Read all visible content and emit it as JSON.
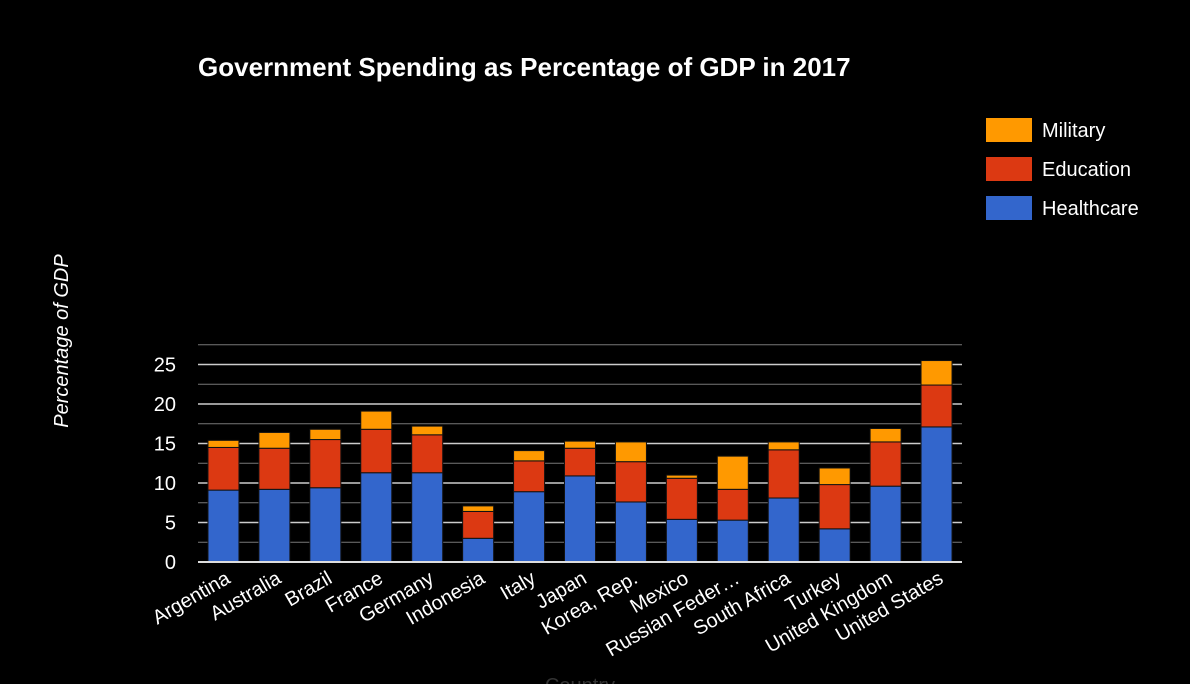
{
  "chart_data": {
    "type": "bar",
    "stacked": true,
    "title": "Government Spending as Percentage of GDP in 2017",
    "xlabel": "Country",
    "ylabel": "Percentage of GDP",
    "ylim": [
      0,
      28
    ],
    "yticks": [
      "0",
      "5",
      "10",
      "15",
      "20",
      "25"
    ],
    "grid": true,
    "legend_position": "right",
    "categories": [
      "Argentina",
      "Australia",
      "Brazil",
      "France",
      "Germany",
      "Indonesia",
      "Italy",
      "Japan",
      "Korea, Rep.",
      "Mexico",
      "Russian Feder…",
      "South Africa",
      "Turkey",
      "United Kingdom",
      "United States"
    ],
    "series": [
      {
        "name": "Healthcare",
        "color": "#3366cc",
        "values": [
          9.1,
          9.2,
          9.4,
          11.3,
          11.3,
          3.0,
          8.9,
          10.9,
          7.6,
          5.4,
          5.3,
          8.1,
          4.2,
          9.6,
          17.1
        ]
      },
      {
        "name": "Education",
        "color": "#dc3912",
        "values": [
          5.4,
          5.2,
          6.1,
          5.5,
          4.8,
          3.4,
          3.9,
          3.5,
          5.1,
          5.2,
          3.9,
          6.1,
          5.6,
          5.6,
          5.3
        ]
      },
      {
        "name": "Military",
        "color": "#ff9900",
        "values": [
          0.9,
          2.0,
          1.3,
          2.3,
          1.1,
          0.7,
          1.3,
          0.9,
          2.5,
          0.4,
          4.2,
          1.0,
          2.1,
          1.7,
          3.1
        ]
      }
    ],
    "legend_order": [
      "Military",
      "Education",
      "Healthcare"
    ]
  }
}
